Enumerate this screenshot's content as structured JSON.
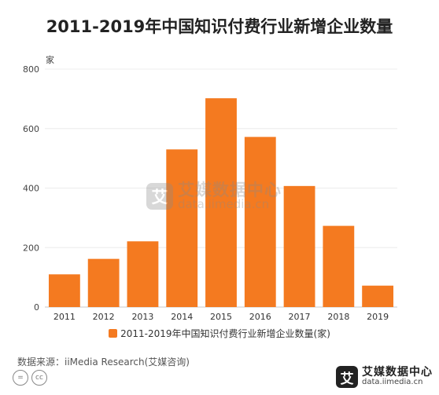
{
  "chart_data": {
    "type": "bar",
    "title": "2011-2019年中国知识付费行业新增企业数量",
    "unit_label": "家",
    "categories": [
      "2011",
      "2012",
      "2013",
      "2014",
      "2015",
      "2016",
      "2017",
      "2018",
      "2019"
    ],
    "series": [
      {
        "name": "2011-2019年中国知识付费行业新增企业数量(家)",
        "values": [
          110,
          162,
          221,
          530,
          702,
          572,
          407,
          273,
          72
        ],
        "color": "#f47a20"
      }
    ],
    "yticks": [
      0,
      200,
      400,
      600,
      800
    ],
    "ylim": [
      0,
      800
    ],
    "grid": true,
    "legend_position": "bottom"
  },
  "footer": {
    "source": "数据来源：iiMedia Research(艾媒咨询)",
    "brand_name": "艾媒数据中心",
    "brand_url": "data.iimedia.cn",
    "logo_glyph": "艾"
  },
  "watermark": {
    "name": "艾媒数据中心",
    "url": "data.iimedia.cn",
    "logo_glyph": "艾"
  },
  "license_icons": [
    "equals-icon",
    "cc-icon"
  ]
}
